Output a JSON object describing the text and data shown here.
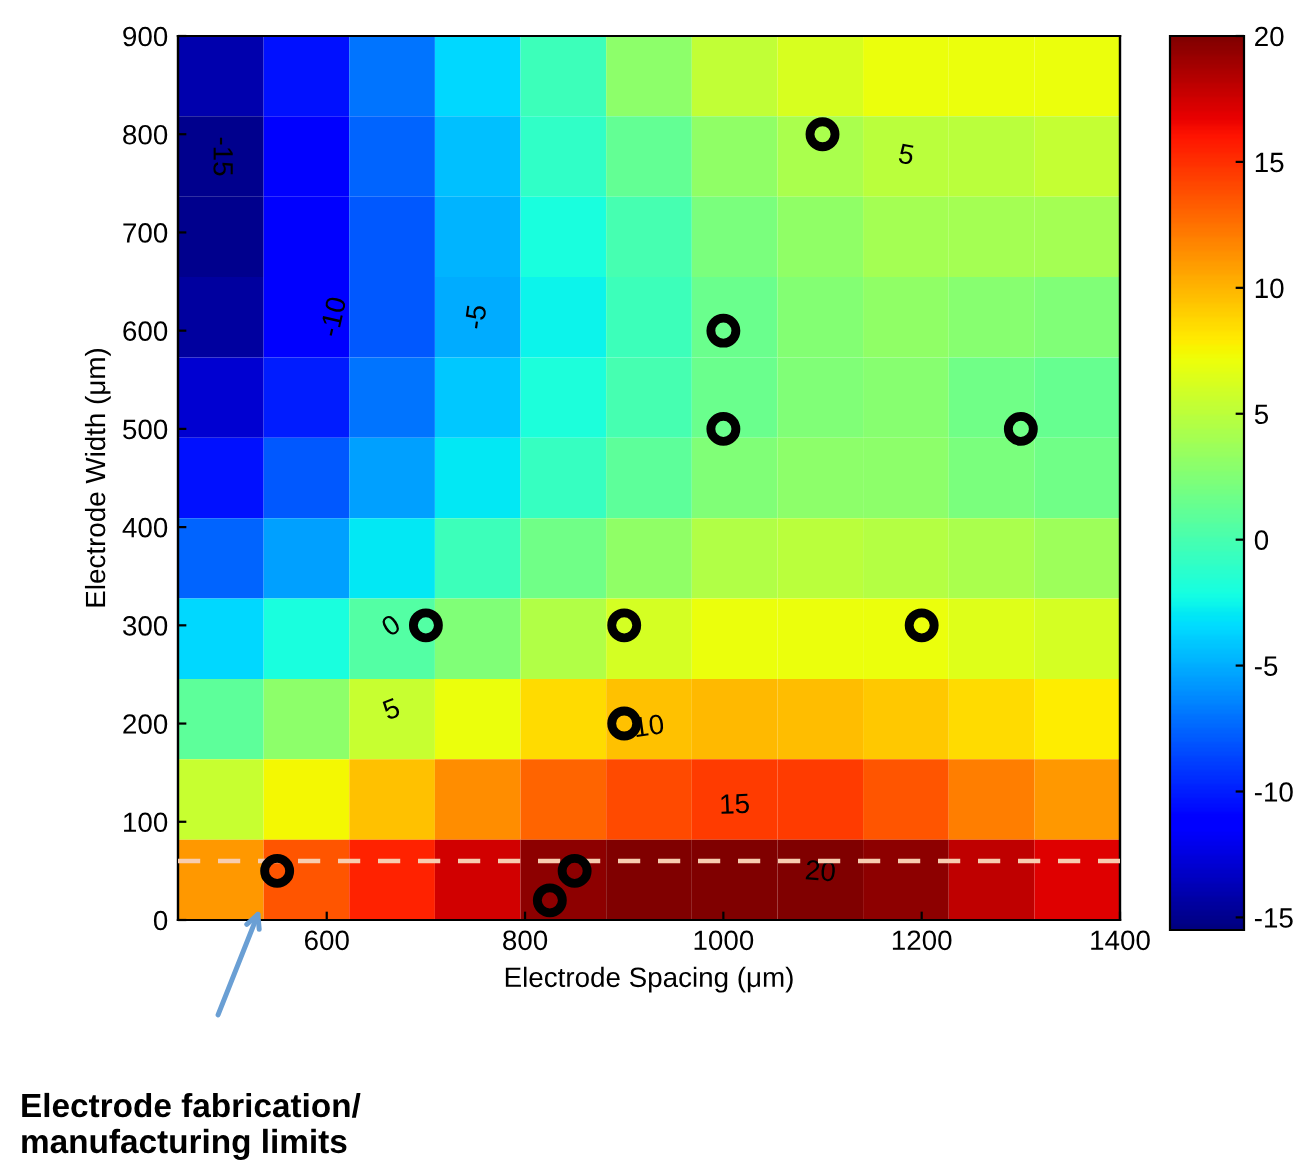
{
  "chart_data": [
    {
      "type": "heatmap",
      "tick_labels": false,
      "annotations": [
        "-15",
        "-10",
        "-5",
        "0",
        "5",
        "10",
        "15",
        "20"
      ],
      "clim": [
        -15.5,
        20
      ],
      "cticks": [
        -15,
        -10,
        -5,
        0,
        5,
        10,
        15,
        20
      ],
      "categories": [
        null,
        null,
        null,
        null,
        null,
        null,
        null,
        null,
        null,
        null,
        null
      ],
      "y_categories": [
        null,
        null,
        null,
        null,
        null,
        null,
        null,
        null,
        null,
        null,
        null
      ],
      "cells": [
        [
          -14,
          -10.5,
          -7,
          -3.5,
          -0.5,
          3,
          5.2,
          6.2,
          7,
          7,
          7
        ],
        [
          -15,
          -11,
          -7.5,
          -4.3,
          -1,
          1.2,
          3.2,
          4.2,
          5,
          5,
          5.4
        ],
        [
          -15,
          -11.5,
          -8,
          -4.8,
          -2,
          0,
          2.2,
          3.2,
          4,
          4,
          4
        ],
        [
          -14.5,
          -11,
          -8,
          -5,
          -2.5,
          -0.5,
          1.5,
          2.6,
          3.2,
          2.8,
          2.5
        ],
        [
          -13,
          -10,
          -7,
          -4,
          -1.8,
          0,
          1.5,
          2.5,
          2.7,
          1.8,
          1.3
        ],
        [
          -10.5,
          -8,
          -5.5,
          -3,
          -0.7,
          1,
          2.5,
          3,
          3,
          2.2,
          1.8
        ],
        [
          -7.5,
          -5.5,
          -3,
          -0.5,
          1.8,
          3.2,
          4.5,
          5,
          4.7,
          4.2,
          3.7
        ],
        [
          -3.5,
          -2,
          0.5,
          2.5,
          4.5,
          6,
          7,
          7,
          7,
          6.5,
          6
        ],
        [
          1,
          3,
          5.5,
          7,
          8.5,
          9.5,
          9.8,
          9.7,
          9.3,
          8.5,
          7.8
        ],
        [
          5.5,
          7.5,
          9.5,
          11.5,
          13,
          14,
          14.5,
          14.5,
          13.5,
          12,
          11
        ],
        [
          11,
          13.5,
          15.5,
          17.5,
          19.5,
          20,
          20.5,
          20.5,
          19.5,
          18,
          17
        ]
      ]
    },
    {
      "type": "scatter",
      "xlabel": "Electrode Spacing (μm)",
      "ylabel": "Electrode Width (μm)",
      "xlim": [
        450,
        1400
      ],
      "xticks": [
        600,
        800,
        1000,
        1200,
        1400
      ],
      "ylim": [
        0,
        900
      ],
      "yticks": [
        0,
        100,
        200,
        300,
        400,
        500,
        600,
        700,
        800,
        900
      ],
      "grid": false,
      "series": [
        {
          "color": "#000000",
          "marker": "circle",
          "x": [
            550,
            825,
            850,
            700,
            900,
            900,
            1000,
            1000,
            1100,
            1200,
            1300
          ],
          "values": [
            50,
            20,
            50,
            300,
            300,
            200,
            600,
            500,
            800,
            300,
            500
          ]
        }
      ],
      "ref_lines": [
        {
          "axis": "y",
          "value": 60,
          "color": "#f7cdb0",
          "line_style": "dashed"
        }
      ],
      "annotations": [
        "Electrode fabrication/\nmanufacturing limits"
      ]
    }
  ]
}
